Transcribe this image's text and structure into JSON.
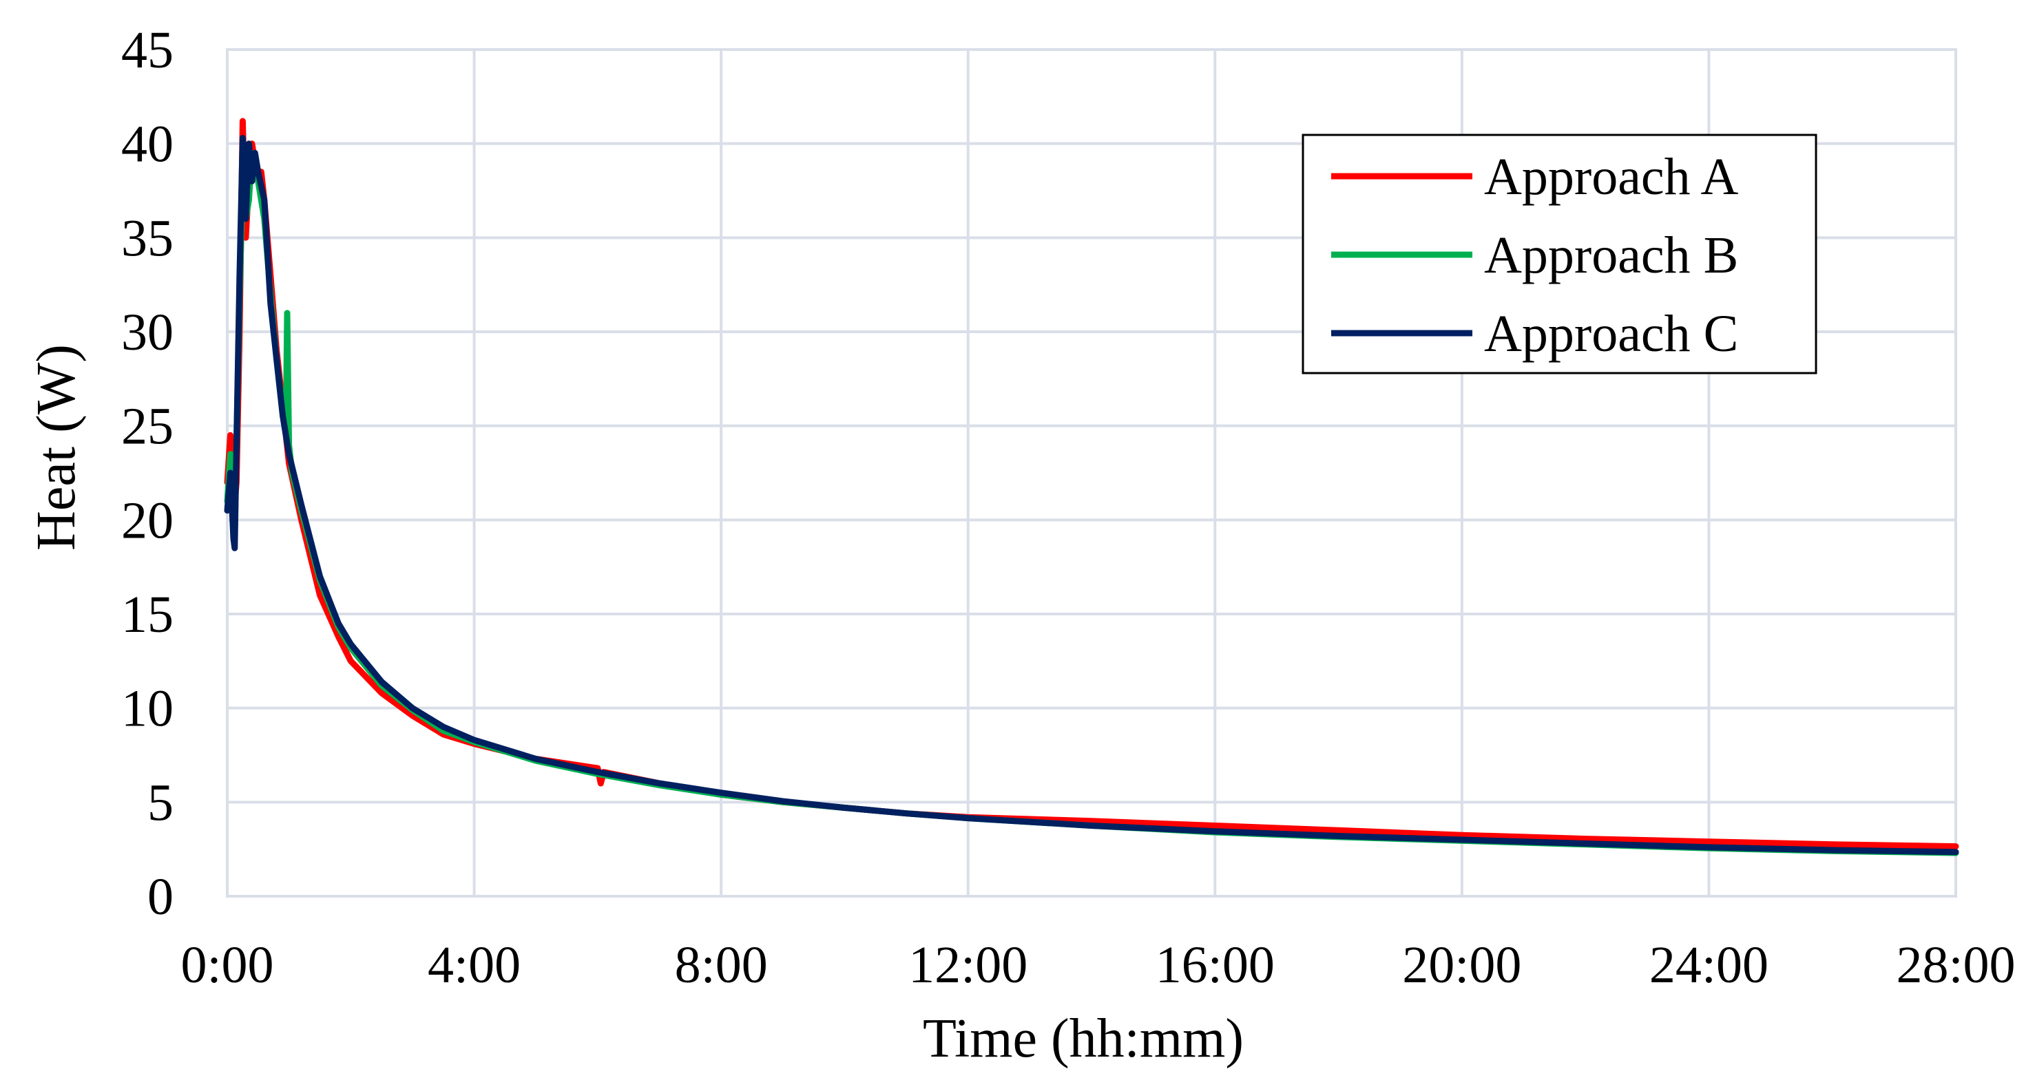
{
  "chart_data": {
    "type": "line",
    "xlabel": "Time (hh:mm)",
    "ylabel": "Heat (W)",
    "x_unit": "hours",
    "xlim": [
      0,
      28
    ],
    "ylim": [
      0,
      45
    ],
    "x_ticks": [
      0,
      4,
      8,
      12,
      16,
      20,
      24,
      28
    ],
    "x_tick_labels": [
      "0:00",
      "4:00",
      "8:00",
      "12:00",
      "16:00",
      "20:00",
      "24:00",
      "28:00"
    ],
    "y_ticks": [
      0,
      5,
      10,
      15,
      20,
      25,
      30,
      35,
      40,
      45
    ],
    "y_tick_labels": [
      "0",
      "5",
      "10",
      "15",
      "20",
      "25",
      "30",
      "35",
      "40",
      "45"
    ],
    "grid": true,
    "legend_position": "top-right",
    "series": [
      {
        "name": "Approach A",
        "color": "#ff0000",
        "x": [
          0,
          0.05,
          0.1,
          0.15,
          0.2,
          0.25,
          0.3,
          0.35,
          0.4,
          0.5,
          0.55,
          0.6,
          0.7,
          0.8,
          0.9,
          1.0,
          1.2,
          1.5,
          1.8,
          2.0,
          2.5,
          3.0,
          3.5,
          4.0,
          5.0,
          6.0,
          6.05,
          6.1,
          7.0,
          8.0,
          9.0,
          10.0,
          11.0,
          12.0,
          14.0,
          16.0,
          18.0,
          20.0,
          22.0,
          24.0,
          26.0,
          28.0
        ],
        "y": [
          22.0,
          24.5,
          20.0,
          22.0,
          30.0,
          41.2,
          35.0,
          38.0,
          40.0,
          38.0,
          38.5,
          37.0,
          33.0,
          29.0,
          26.0,
          23.0,
          20.0,
          16.0,
          13.8,
          12.5,
          10.8,
          9.6,
          8.6,
          8.1,
          7.3,
          6.8,
          6.0,
          6.6,
          6.0,
          5.4,
          5.0,
          4.7,
          4.4,
          4.2,
          4.0,
          3.75,
          3.5,
          3.25,
          3.05,
          2.9,
          2.75,
          2.65
        ]
      },
      {
        "name": "Approach B",
        "color": "#00b050",
        "x": [
          0,
          0.05,
          0.1,
          0.15,
          0.2,
          0.25,
          0.3,
          0.35,
          0.4,
          0.5,
          0.6,
          0.7,
          0.8,
          0.9,
          0.95,
          0.97,
          1.0,
          1.05,
          1.2,
          1.5,
          1.8,
          2.0,
          2.5,
          3.0,
          3.5,
          4.0,
          5.0,
          6.0,
          7.0,
          8.0,
          9.0,
          10.0,
          11.0,
          12.0,
          14.0,
          16.0,
          18.0,
          20.0,
          22.0,
          24.0,
          26.0,
          28.0
        ],
        "y": [
          21.0,
          23.5,
          21.0,
          24.0,
          32.0,
          38.0,
          36.0,
          37.0,
          39.5,
          38.0,
          36.0,
          32.0,
          28.5,
          25.5,
          25.0,
          31.0,
          24.0,
          22.5,
          20.5,
          16.8,
          14.3,
          13.2,
          11.2,
          9.9,
          8.8,
          8.2,
          7.2,
          6.5,
          5.9,
          5.4,
          5.0,
          4.7,
          4.4,
          4.15,
          3.75,
          3.4,
          3.15,
          2.95,
          2.75,
          2.55,
          2.4,
          2.3
        ]
      },
      {
        "name": "Approach C",
        "color": "#002060",
        "x": [
          0,
          0.05,
          0.1,
          0.12,
          0.15,
          0.2,
          0.25,
          0.3,
          0.35,
          0.4,
          0.45,
          0.5,
          0.6,
          0.7,
          0.8,
          0.9,
          1.0,
          1.2,
          1.5,
          1.8,
          2.0,
          2.5,
          3.0,
          3.5,
          4.0,
          5.0,
          6.0,
          7.0,
          8.0,
          9.0,
          10.0,
          11.0,
          12.0,
          14.0,
          16.0,
          18.0,
          20.0,
          22.0,
          24.0,
          26.0,
          28.0
        ],
        "y": [
          20.5,
          22.5,
          19.0,
          18.5,
          24.0,
          33.0,
          40.3,
          36.0,
          40.0,
          38.0,
          39.5,
          38.5,
          37.0,
          31.5,
          28.5,
          25.5,
          23.5,
          20.8,
          17.0,
          14.5,
          13.4,
          11.4,
          10.0,
          9.0,
          8.3,
          7.3,
          6.6,
          6.0,
          5.5,
          5.05,
          4.7,
          4.4,
          4.15,
          3.75,
          3.45,
          3.2,
          3.0,
          2.8,
          2.6,
          2.45,
          2.35
        ]
      }
    ]
  }
}
